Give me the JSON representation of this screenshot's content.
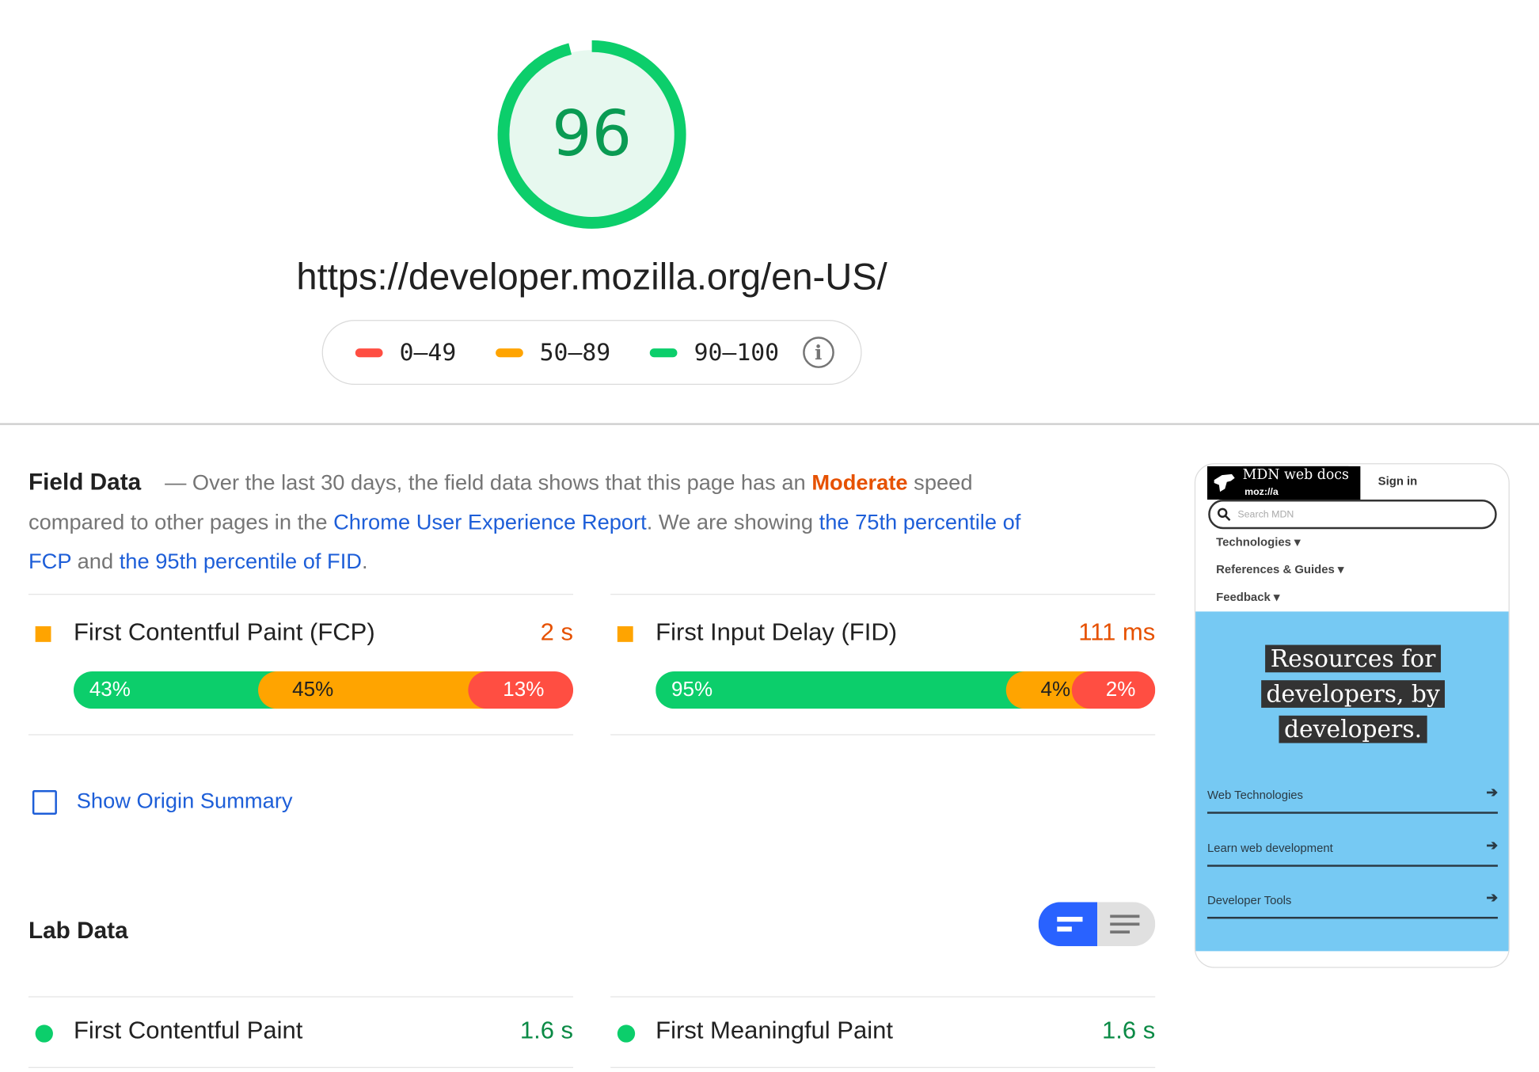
{
  "score": {
    "value": "96",
    "fraction": 0.96,
    "color": "#0cce6b"
  },
  "url": "https://developer.mozilla.org/en-US/",
  "legend": [
    {
      "label": "0–49",
      "color": "#ff4e42"
    },
    {
      "label": "50–89",
      "color": "#ffa400"
    },
    {
      "label": "90–100",
      "color": "#0cce6b"
    }
  ],
  "legend_info_icon": "info-icon",
  "field": {
    "title": "Field Data",
    "t1": "— Over the last 30 days, the field data shows that this page has an",
    "rating": "Moderate",
    "t2": "speed compared to other pages in the",
    "link1": "Chrome User Experience Report",
    "t3": ". We are showing",
    "link2": "the 75th percentile of FCP",
    "t4": "and",
    "link3": "the 95th percentile of FID",
    "t5": "."
  },
  "field_metrics": [
    {
      "title": "First Contentful Paint (FCP)",
      "value": "2 s",
      "dist": [
        {
          "label": "43%",
          "pct": 43
        },
        {
          "label": "45%",
          "pct": 45
        },
        {
          "label": "13%",
          "pct": 13
        }
      ]
    },
    {
      "title": "First Input Delay (FID)",
      "value": "111 ms",
      "dist": [
        {
          "label": "95%",
          "pct": 95
        },
        {
          "label": "4%",
          "pct": 4
        },
        {
          "label": "2%",
          "pct": 2
        }
      ]
    }
  ],
  "origin_summary": {
    "label": "Show Origin Summary",
    "checked": false
  },
  "lab": {
    "title": "Lab Data",
    "view_toggle": {
      "selected": "summary-view"
    }
  },
  "lab_metrics": [
    {
      "title": "First Contentful Paint",
      "value": "1.6 s",
      "status": "good"
    },
    {
      "title": "First Meaningful Paint",
      "value": "1.6 s",
      "status": "good"
    }
  ],
  "screenshot": {
    "logo_title": "MDN web docs",
    "logo_sub": "moz://a",
    "signin": "Sign in",
    "search_placeholder": "Search MDN",
    "nav": [
      "Technologies ▾",
      "References & Guides ▾",
      "Feedback ▾"
    ],
    "hero": [
      "Resources for",
      "developers, by",
      "developers."
    ],
    "links": [
      "Web Technologies",
      "Learn web development",
      "Developer Tools"
    ],
    "arrow": "➔"
  }
}
